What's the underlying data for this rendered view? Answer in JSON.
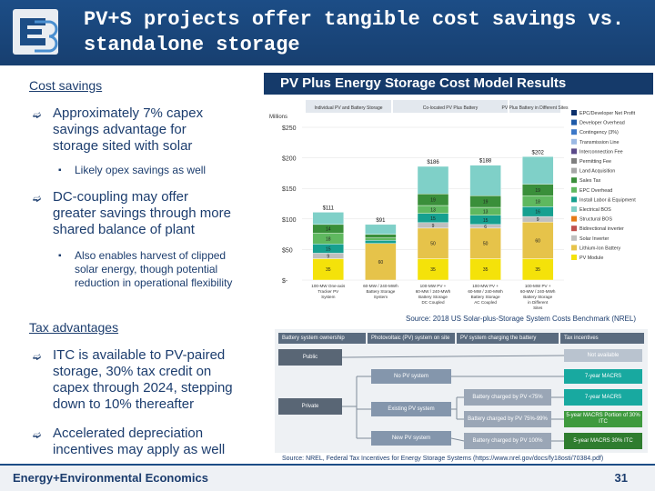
{
  "slide": {
    "title_line1": "PV+S projects offer tangible cost savings vs.",
    "title_line2": "standalone storage",
    "logo_icon": "e3-logo-icon"
  },
  "left": {
    "cost_heading": "Cost savings",
    "b1": [
      "Approximately 7% capex",
      "savings advantage for",
      "storage sited with solar"
    ],
    "b1_sub": "Likely opex savings as well",
    "b2": [
      "DC-coupling may offer",
      "greater savings through more",
      "shared balance of plant"
    ],
    "b2_sub": [
      "Also enables harvest of clipped",
      "solar energy, though potential",
      "reduction in operational flexibility"
    ],
    "tax_heading": "Tax advantages",
    "b3": [
      "ITC is available to PV-paired",
      "storage, 30% tax credit on",
      "capex through 2024, stepping",
      "down to 10% thereafter"
    ],
    "b4": [
      "Accelerated depreciation",
      "incentives may apply as well"
    ]
  },
  "chart": {
    "panel_title": "PV Plus Energy Storage Cost Model Results",
    "source": "Source: 2018 US Solar-plus-Storage System Costs Benchmark (NREL)",
    "units": "Millions",
    "group_labels": [
      "Individual PV and Battery Storage",
      "Co-located PV Plus Battery",
      "PV Plus Battery in Different Sites"
    ],
    "legend": [
      "EPC/Developer Net Profit",
      "Developer Overhead",
      "Contingency (3%)",
      "Transmission Line",
      "Interconnection Fee",
      "Permitting Fee",
      "Land Acquisition",
      "Sales Tax",
      "EPC Overhead",
      "Install Labor & Equipment",
      "Electrical BOS",
      "Structural BOS",
      "Bidirectional inverter",
      "Solar Inverter",
      "Lithium-Ion Battery",
      "PV Module"
    ],
    "colors": [
      "#0b2f6b",
      "#1f5aa8",
      "#3c78c8",
      "#9bb9e4",
      "#5b4a8a",
      "#7f7f7f",
      "#a6a6a6",
      "#3a8f3a",
      "#5fb85f",
      "#16a090",
      "#7fd0c8",
      "#e57a18",
      "#c0504d",
      "#bfbfbf",
      "#e6c34a",
      "#f4e20a"
    ]
  },
  "chart_data": {
    "type": "bar",
    "categories": [
      "100-MW One-axis Tracker PV System",
      "60-MW / 240-MWh Battery Storage System",
      "100-MW PV + 60-MW / 240-MWh Battery Storage DC Coupled",
      "100-MW PV + 60-MW / 240-MWh Battery Storage AC Coupled",
      "100-MW PV + 60-MW / 240-MWh Battery Storage in Different Sites"
    ],
    "totals": [
      111,
      91,
      186,
      188,
      202
    ],
    "total_labels": [
      "$111",
      "$91",
      "$186",
      "$188",
      "$202"
    ],
    "series": [
      {
        "values": [
          35,
          0,
          35,
          35,
          35
        ],
        "labels": [
          "35",
          "",
          "35",
          "35",
          "35"
        ]
      },
      {
        "values": [
          0,
          60,
          50,
          50,
          60
        ],
        "labels": [
          "",
          "60",
          "50",
          "50",
          "60"
        ]
      },
      {
        "values": [
          9,
          0,
          9,
          6,
          9
        ],
        "labels": [
          "9",
          "",
          "9",
          "6",
          "9"
        ]
      },
      {
        "values": [
          15,
          5,
          15,
          15,
          16
        ],
        "labels": [
          "15",
          "",
          "15",
          "15",
          "16"
        ]
      },
      {
        "values": [
          18,
          4,
          13,
          13,
          18
        ],
        "labels": [
          "18",
          "",
          "13",
          "13",
          "18"
        ]
      },
      {
        "values": [
          14,
          6,
          19,
          19,
          19
        ],
        "labels": [
          "14",
          "",
          "19",
          "19",
          "19"
        ]
      },
      {
        "values": [
          20,
          16,
          45,
          50,
          45
        ],
        "labels": [
          "",
          "",
          "",
          "",
          ""
        ]
      }
    ],
    "ylabel": "Millions",
    "yticks": [
      "$-",
      "$50",
      "$100",
      "$150",
      "$200",
      "$250"
    ],
    "ylim": [
      0,
      250
    ]
  },
  "tax": {
    "col_headers": [
      "Battery system ownership",
      "Photovoltaic (PV) system on site",
      "PV system charging the battery",
      "Tax incentives"
    ],
    "public": "Public",
    "private": "Private",
    "not_available": "Not available",
    "no_pv": "No PV system",
    "existing_pv": "Existing PV system",
    "new_pv": "New PV system",
    "lt75": "Battery charged by PV <75%",
    "r75_99": "Battery charged by PV 75%-99%",
    "p100": "Battery charged by PV 100%",
    "macrs7": "7-year MACRS",
    "macrs7b": "7-year MACRS",
    "macrs5p": "5-year MACRS Portion of 30% ITC",
    "macrs5": "5-year MACRS 30% ITC",
    "source": "Source: NREL, Federal Tax Incentives for Energy Storage Systems (https://www.nrel.gov/docs/fy18osti/70384.pdf)"
  },
  "footer": {
    "brand": "Energy+Environmental Economics",
    "page": "31"
  }
}
